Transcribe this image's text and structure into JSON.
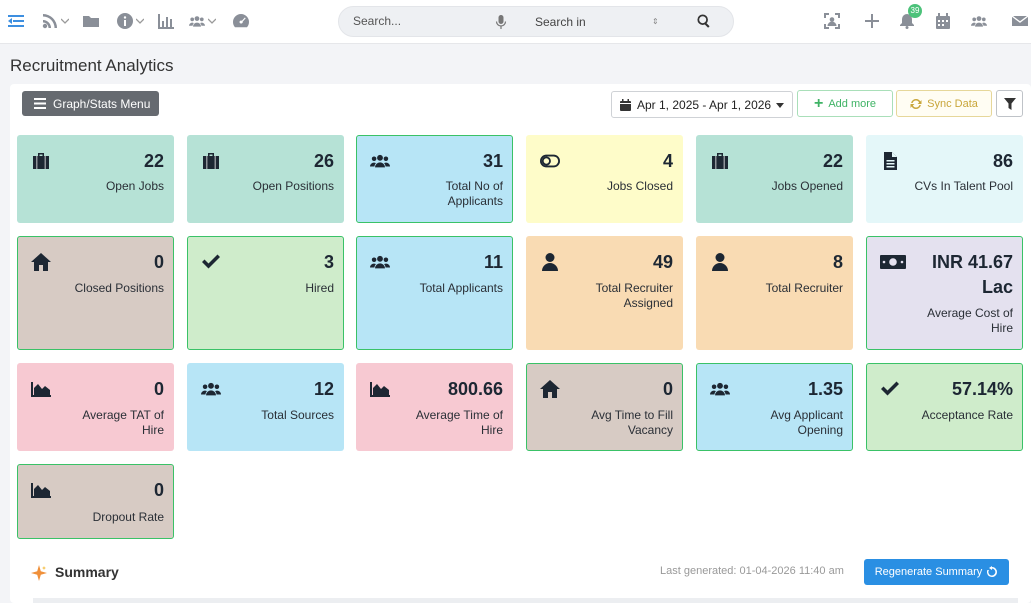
{
  "search": {
    "placeholder": "Search...",
    "scope": "Search in"
  },
  "notifications": {
    "count": "39"
  },
  "page": {
    "title": "Recruitment Analytics"
  },
  "toolbar": {
    "menu_label": "Graph/Stats Menu",
    "date_range": "Apr 1, 2025 - Apr 1, 2026",
    "add_more_label": "Add more",
    "sync_label": "Sync Data"
  },
  "cards": [
    {
      "value": "22",
      "label": "Open Jobs",
      "icon": "briefcase-icon",
      "color": "#b6e2d6"
    },
    {
      "value": "26",
      "label": "Open Positions",
      "icon": "briefcase-icon",
      "color": "#b6e2d6"
    },
    {
      "value": "31",
      "label": "Total No of Applicants",
      "icon": "users-icon",
      "color": "#b7e5f6"
    },
    {
      "value": "4",
      "label": "Jobs Closed",
      "icon": "toggle-icon",
      "color": "#fefcc9"
    },
    {
      "value": "22",
      "label": "Jobs Opened",
      "icon": "briefcase-icon",
      "color": "#b6e2d6"
    },
    {
      "value": "86",
      "label": "CVs In Talent Pool",
      "icon": "file-icon",
      "color": "#e4f7f9"
    },
    {
      "value": "0",
      "label": "Closed Positions",
      "icon": "home-icon",
      "color": "#d7cbc4"
    },
    {
      "value": "3",
      "label": "Hired",
      "icon": "check-icon",
      "color": "#cfeccb"
    },
    {
      "value": "11",
      "label": "Total Applicants",
      "icon": "users-icon",
      "color": "#b7e5f6"
    },
    {
      "value": "49",
      "label": "Total Recruiter Assigned",
      "icon": "user-icon",
      "color": "#f9dbb3"
    },
    {
      "value": "8",
      "label": "Total Recruiter",
      "icon": "user-icon",
      "color": "#f9dbb3"
    },
    {
      "value": "INR 41.67 Lac",
      "label": "Average Cost of Hire",
      "icon": "money-icon",
      "color": "#e4e1ef"
    },
    {
      "value": "0",
      "label": "Average TAT of Hire",
      "icon": "area-chart-icon",
      "color": "#f7c9d2"
    },
    {
      "value": "12",
      "label": "Total Sources",
      "icon": "users-icon",
      "color": "#b7e5f6"
    },
    {
      "value": "800.66",
      "label": "Average Time of Hire",
      "icon": "area-chart-icon",
      "color": "#f7c9d2"
    },
    {
      "value": "0",
      "label": "Avg Time to Fill Vacancy",
      "icon": "home-icon",
      "color": "#d7cbc4"
    },
    {
      "value": "1.35",
      "label": "Avg Applicant Opening",
      "icon": "users-icon",
      "color": "#b7e5f6"
    },
    {
      "value": "57.14%",
      "label": "Acceptance Rate",
      "icon": "check-icon",
      "color": "#cfeccb"
    },
    {
      "value": "0",
      "label": "Dropout Rate",
      "icon": "area-chart-icon",
      "color": "#d7cbc4"
    }
  ],
  "summary": {
    "title": "Summary",
    "last_generated": "Last generated: 01-04-2026 11:40 am",
    "regenerate_label": "Regenerate Summary"
  }
}
